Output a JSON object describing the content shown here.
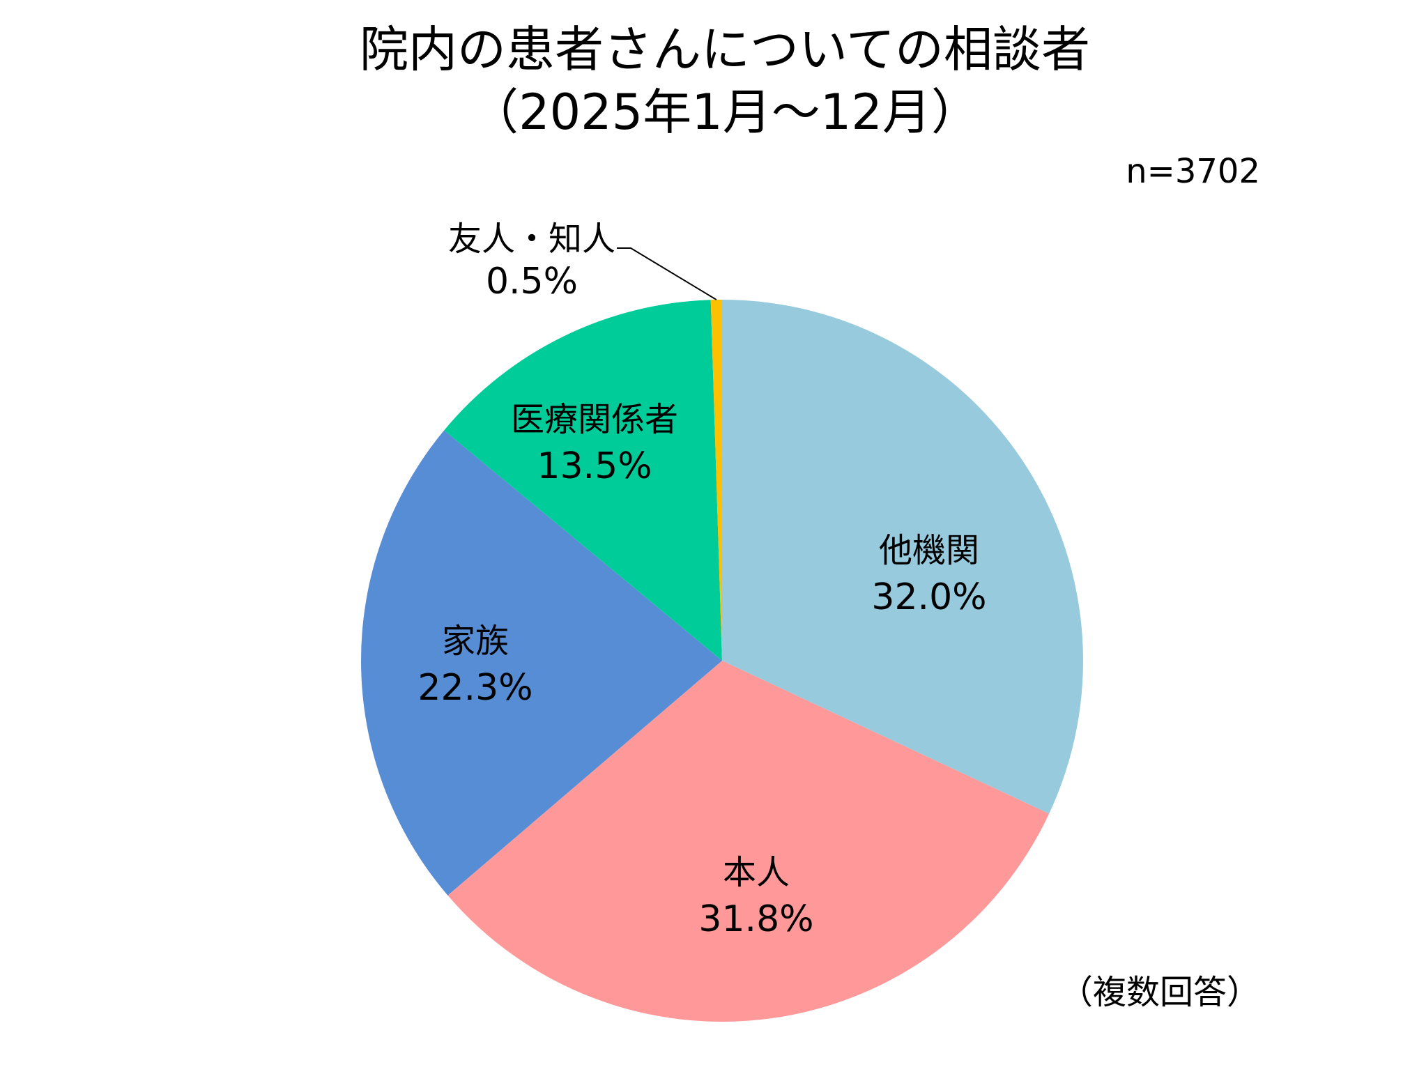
{
  "chart_data": {
    "type": "pie",
    "title": "院内の患者さんについての相談者",
    "subtitle": "（2025年1月～12月）",
    "n_label": "n=3702",
    "footnote": "（複数回答）",
    "slices": [
      {
        "label": "他機関",
        "value": 32.0,
        "value_label": "32.0%",
        "color": "#96CADC"
      },
      {
        "label": "本人",
        "value": 31.8,
        "value_label": "31.8%",
        "color": "#FF9999"
      },
      {
        "label": "家族",
        "value": 22.3,
        "value_label": "22.3%",
        "color": "#568DD4"
      },
      {
        "label": "医療関係者",
        "value": 13.5,
        "value_label": "13.5%",
        "color": "#00CC99"
      },
      {
        "label": "友人・知人",
        "value": 0.5,
        "value_label": "0.5%",
        "color": "#FFC000"
      }
    ],
    "start_position": "top",
    "direction": "clockwise",
    "legend": "none"
  }
}
